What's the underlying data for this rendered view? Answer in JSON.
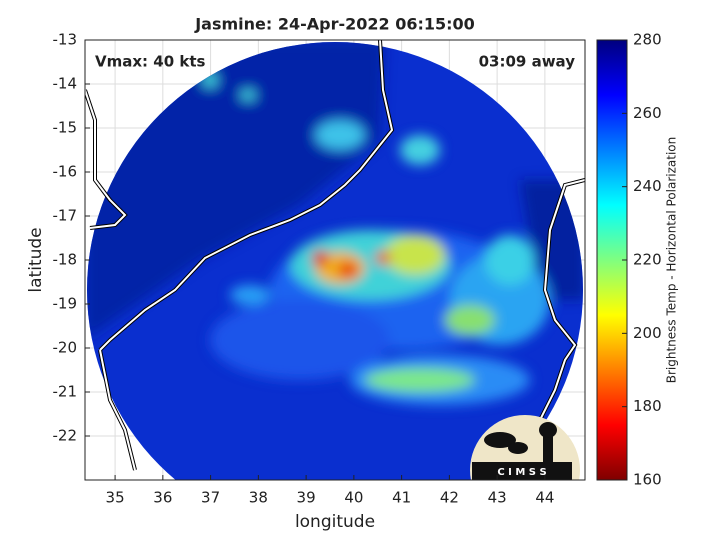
{
  "title": "Jasmine: 24-Apr-2022 06:15:00",
  "annotations": {
    "vmax": "Vmax: 40 kts",
    "time_away": "03:09 away"
  },
  "x_axis": {
    "label": "longitude",
    "lim": [
      34.37,
      44.84
    ],
    "ticks": [
      35,
      36,
      37,
      38,
      39,
      40,
      41,
      42,
      43,
      44
    ]
  },
  "y_axis": {
    "label": "latitude",
    "lim": [
      -23,
      -13
    ],
    "ticks": [
      -13,
      -14,
      -15,
      -16,
      -17,
      -18,
      -19,
      -20,
      -21,
      -22
    ]
  },
  "colorbar": {
    "label": "Brightness Temp - Horizontal Polarization",
    "lim": [
      160,
      280
    ],
    "ticks": [
      160,
      180,
      200,
      220,
      240,
      260,
      280
    ]
  },
  "logo": "C I M S S"
}
